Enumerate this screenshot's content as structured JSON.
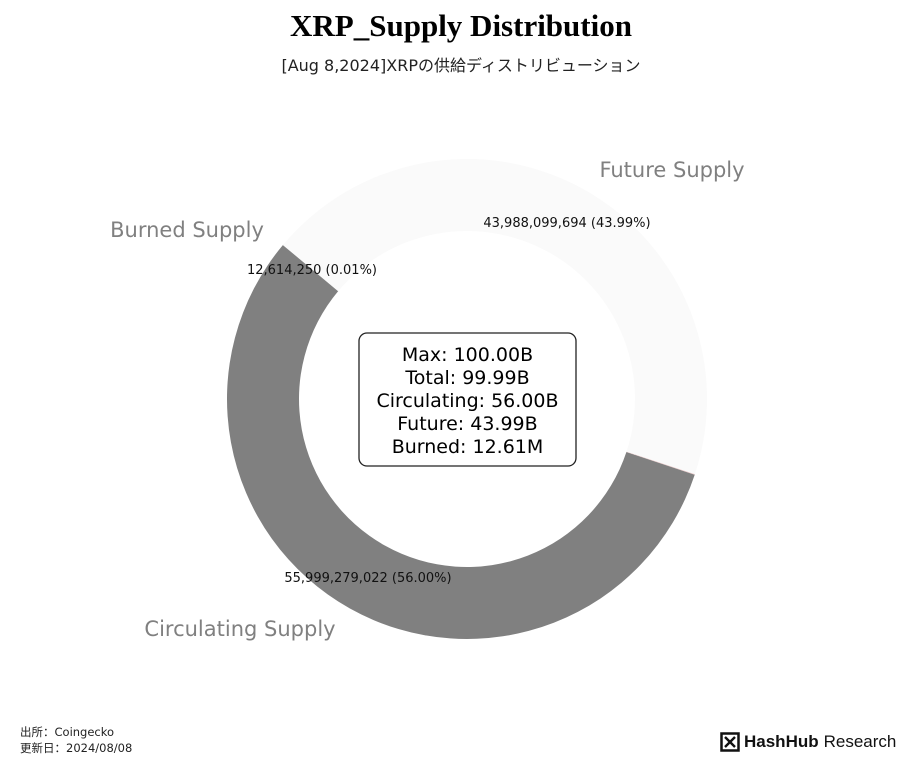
{
  "chart_data": {
    "type": "pie",
    "title": "XRP_Supply Distribution",
    "subtitle": "[Aug 8,2024]XRPの供給ディストリビューション",
    "categories": [
      "Circulating Supply",
      "Burned Supply",
      "Future Supply"
    ],
    "values": [
      55999279022,
      12614250,
      43988099694
    ],
    "value_labels": [
      "55,999,279,022 (56.00%)",
      "12,614,250 (0.01%)",
      "43,988,099,694 (43.99%)"
    ],
    "colors": [
      "#808080",
      "#e8c4c4",
      "#fafafa"
    ],
    "center_box": [
      "Max: 100.00B",
      "Total: 99.99B",
      "Circulating: 56.00B",
      "Future: 43.99B",
      "Burned: 12.61M"
    ]
  },
  "footer": {
    "source": "出所：Coingecko",
    "updated": "更新日：2024/08/08"
  },
  "brand": {
    "name_bold": "HashHub",
    "name_regular": "Research",
    "logo_icon": "hashhub-logo-icon"
  }
}
